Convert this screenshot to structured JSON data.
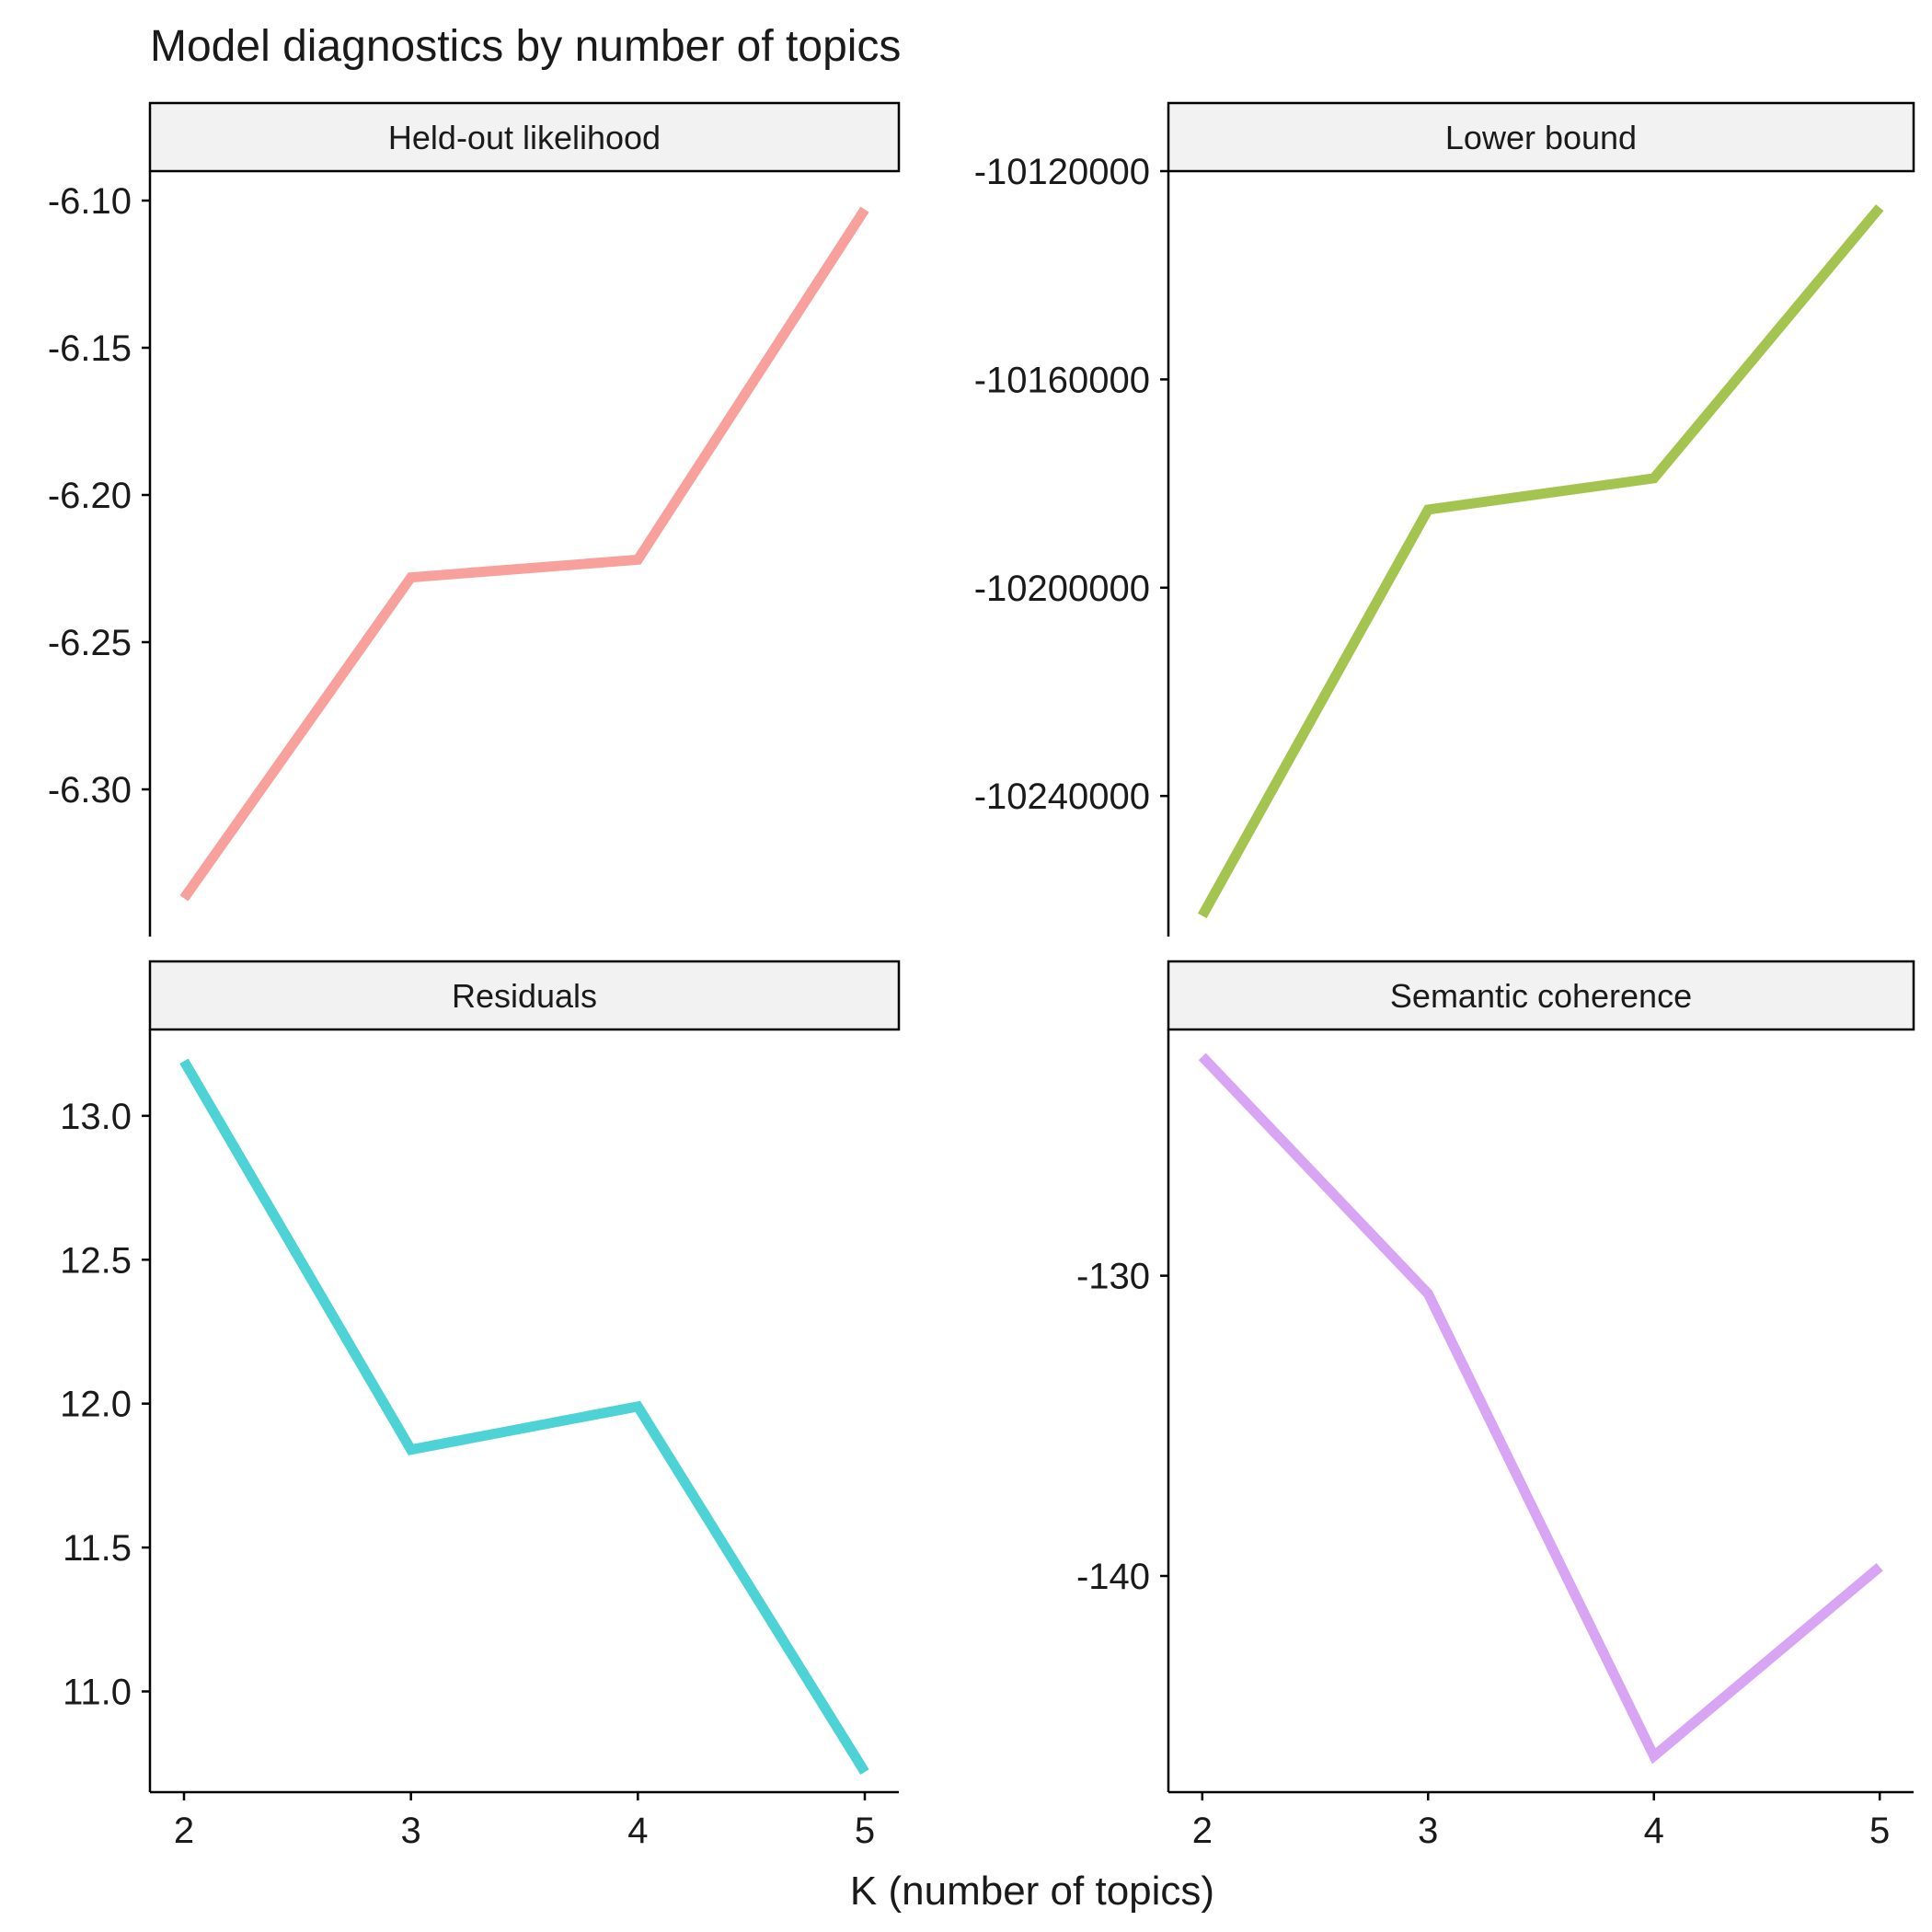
{
  "title": "Model diagnostics by number of topics",
  "xlabel": "K (number of topics)",
  "colors": {
    "strip_fill": "#f2f2f2",
    "axis": "#000000"
  },
  "chart_data": [
    {
      "type": "line",
      "panel": "Held-out likelihood",
      "color": "#f8a19c",
      "x": [
        2,
        3,
        4,
        5
      ],
      "y": [
        -6.337,
        -6.228,
        -6.222,
        -6.103
      ],
      "xlim": [
        1.85,
        5.15
      ],
      "ylim": [
        -6.35,
        -6.09
      ],
      "yticks": [
        -6.3,
        -6.25,
        -6.2,
        -6.15,
        -6.1
      ],
      "ytick_labels": [
        "-6.30",
        "-6.25",
        "-6.20",
        "-6.15",
        "-6.10"
      ],
      "xticks": [],
      "xtick_labels": []
    },
    {
      "type": "line",
      "panel": "Lower bound",
      "color": "#a3c550",
      "x": [
        2,
        3,
        4,
        5
      ],
      "y": [
        -10263000,
        -10185000,
        -10179000,
        -10127000
      ],
      "xlim": [
        1.85,
        5.15
      ],
      "ylim": [
        -10267000,
        -10120000
      ],
      "yticks": [
        -10240000,
        -10200000,
        -10160000,
        -10120000
      ],
      "ytick_labels": [
        "-10240000",
        "-10200000",
        "-10160000",
        "-10120000"
      ],
      "xticks": [],
      "xtick_labels": []
    },
    {
      "type": "line",
      "panel": "Residuals",
      "color": "#4dd2d5",
      "x": [
        2,
        3,
        4,
        5
      ],
      "y": [
        13.19,
        11.84,
        11.99,
        10.72
      ],
      "xlim": [
        1.85,
        5.15
      ],
      "ylim": [
        10.65,
        13.3
      ],
      "yticks": [
        11.0,
        11.5,
        12.0,
        12.5,
        13.0
      ],
      "ytick_labels": [
        "11.0",
        "11.5",
        "12.0",
        "12.5",
        "13.0"
      ],
      "xticks": [
        2,
        3,
        4,
        5
      ],
      "xtick_labels": [
        "2",
        "3",
        "4",
        "5"
      ]
    },
    {
      "type": "line",
      "panel": "Semantic coherence",
      "color": "#d8a4f4",
      "x": [
        2,
        3,
        4,
        5
      ],
      "y": [
        -122.7,
        -130.6,
        -146.0,
        -139.7
      ],
      "xlim": [
        1.85,
        5.15
      ],
      "ylim": [
        -147.2,
        -121.8
      ],
      "yticks": [
        -140,
        -130
      ],
      "ytick_labels": [
        "-140",
        "-130"
      ],
      "xticks": [
        2,
        3,
        4,
        5
      ],
      "xtick_labels": [
        "2",
        "3",
        "4",
        "5"
      ]
    }
  ]
}
